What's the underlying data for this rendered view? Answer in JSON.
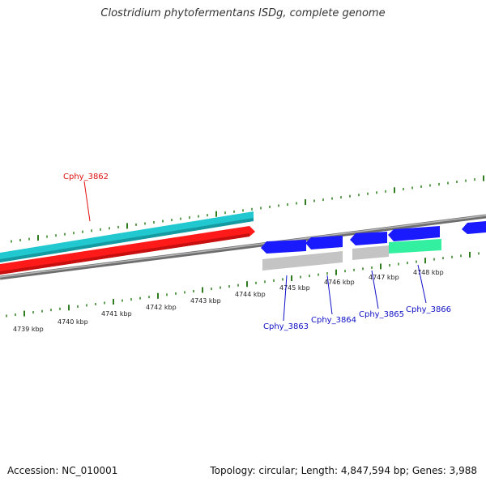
{
  "title": "Clostridium phytofermentans ISDg, complete genome",
  "footer": {
    "accession": "Accession: NC_010001",
    "summary": "Topology: circular; Length: 4,847,594 bp; Genes: 3,988"
  },
  "colors": {
    "background": "#ffffff",
    "tick": "#2e7d1e",
    "backbone": "#7a7a7a",
    "gene_label_forward": "#e01010",
    "gene_label_reverse": "#1010c8",
    "cds_cyan": "#22c8d0",
    "cds_red": "#ff1a1a",
    "cds_blue": "#1a1aff",
    "cds_grey": "#c0c0c0",
    "cds_green": "#33f0a0"
  },
  "axis": {
    "unit": "kbp",
    "ticks": [
      "4739 kbp",
      "4740 kbp",
      "4741 kbp",
      "4742 kbp",
      "4743 kbp",
      "4744 kbp",
      "4745 kbp",
      "4746 kbp",
      "4747 kbp",
      "4748 kbp"
    ]
  },
  "genes": [
    {
      "label": "Cphy_3862",
      "strand": "forward",
      "color": "#e01010"
    },
    {
      "label": "Cphy_3863",
      "strand": "reverse",
      "color": "#1010c8"
    },
    {
      "label": "Cphy_3864",
      "strand": "reverse",
      "color": "#1010c8"
    },
    {
      "label": "Cphy_3865",
      "strand": "reverse",
      "color": "#1010c8"
    },
    {
      "label": "Cphy_3866",
      "strand": "reverse",
      "color": "#1010c8"
    }
  ]
}
